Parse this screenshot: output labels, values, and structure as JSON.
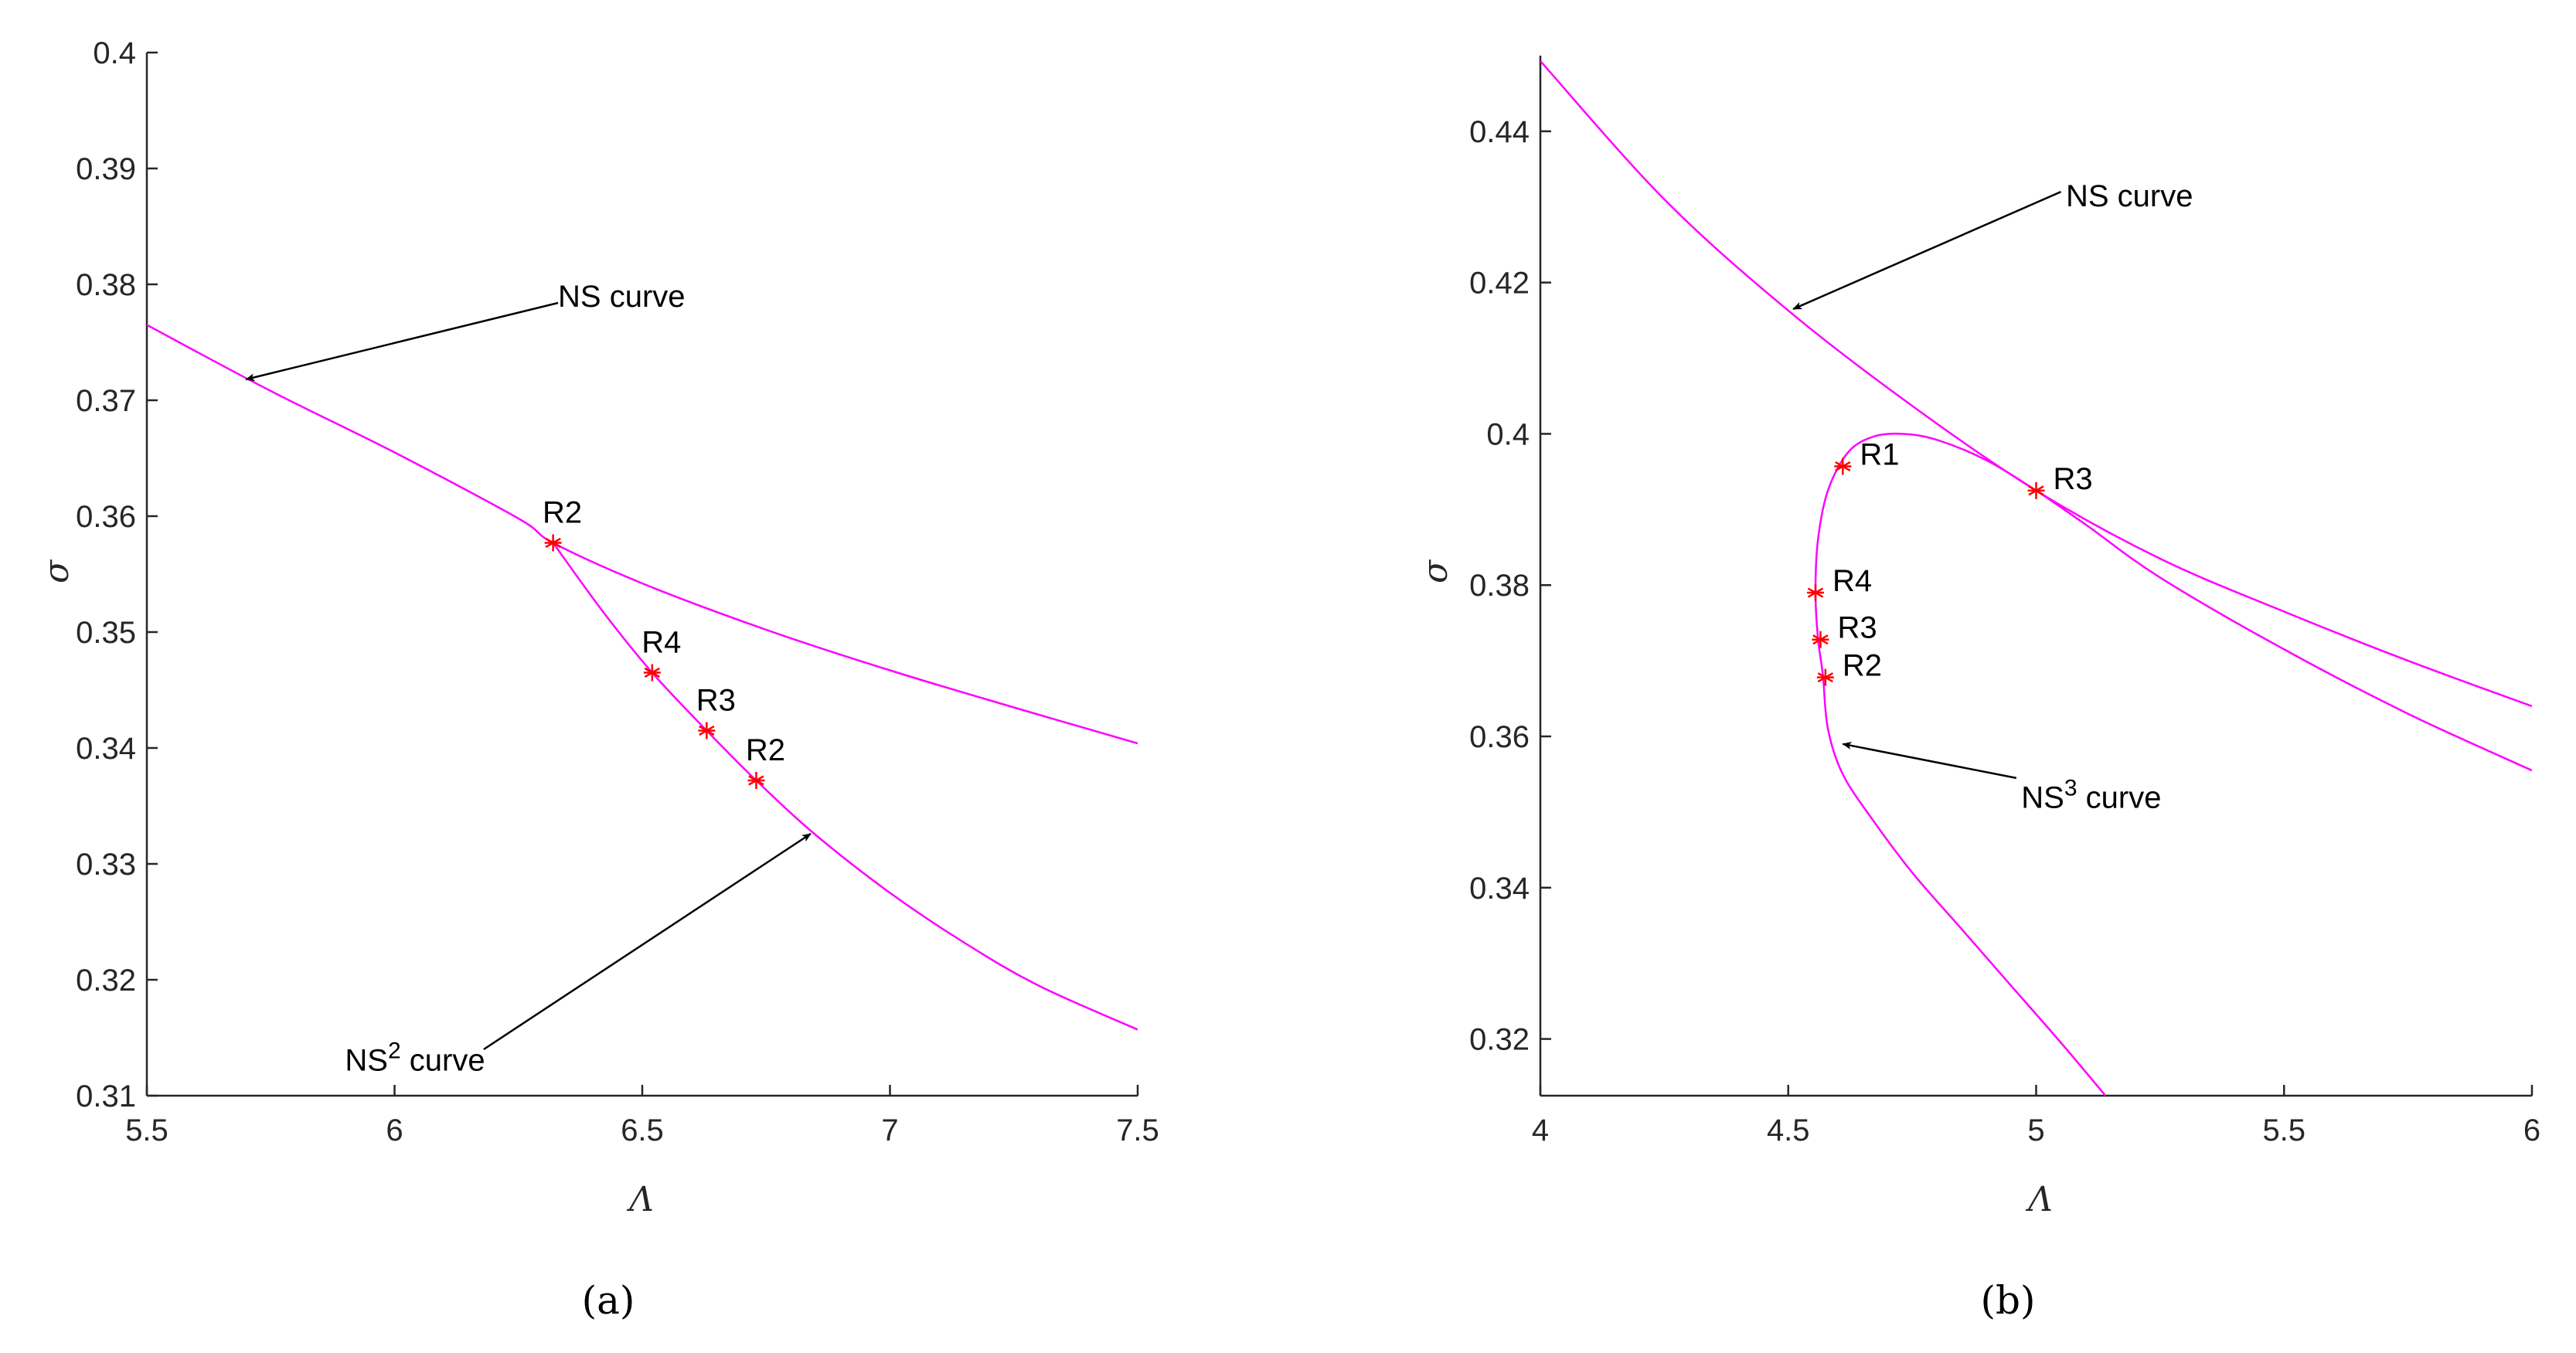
{
  "chart_data": [
    {
      "type": "line",
      "panel_label": "(a)",
      "xlabel": "Λ",
      "ylabel": "σ",
      "xlim": [
        5.5,
        7.5
      ],
      "ylim": [
        0.31,
        0.4
      ],
      "xticks": [
        5.5,
        6,
        6.5,
        7,
        7.5
      ],
      "xtick_labels": [
        "5.5",
        "6",
        "6.5",
        "7",
        "7.5"
      ],
      "yticks": [
        0.31,
        0.32,
        0.33,
        0.34,
        0.35,
        0.36,
        0.37,
        0.38,
        0.39,
        0.4
      ],
      "ytick_labels": [
        "0.31",
        "0.32",
        "0.33",
        "0.34",
        "0.35",
        "0.36",
        "0.37",
        "0.38",
        "0.39",
        "0.4"
      ],
      "grid": false,
      "line_color": "#ff00ff",
      "marker_color": "#ff0000",
      "series": [
        {
          "x": [
            5.5,
            5.75,
            6.0,
            6.25,
            6.32,
            6.5,
            6.75,
            7.0,
            7.25,
            7.5
          ],
          "y": [
            0.3765,
            0.3708,
            0.3655,
            0.3598,
            0.3577,
            0.3542,
            0.3502,
            0.3467,
            0.3435,
            0.3404
          ]
        },
        {
          "x": [
            6.32,
            6.42,
            6.52,
            6.63,
            6.73,
            6.85,
            7.0,
            7.15,
            7.3,
            7.5
          ],
          "y": [
            0.3577,
            0.3518,
            0.3465,
            0.3415,
            0.3372,
            0.3325,
            0.3275,
            0.3232,
            0.3195,
            0.3157
          ]
        }
      ],
      "points": [
        {
          "label": "R2",
          "x": 6.32,
          "y": 0.3577
        },
        {
          "label": "R4",
          "x": 6.52,
          "y": 0.3465
        },
        {
          "label": "R3",
          "x": 6.63,
          "y": 0.3415
        },
        {
          "label": "R2",
          "x": 6.73,
          "y": 0.3372
        }
      ],
      "annotations": [
        {
          "text": "NS curve",
          "sup": "",
          "text_after": "",
          "text_x": 6.33,
          "text_y": 0.379,
          "arrow_from_x": 6.33,
          "arrow_from_y": 0.3784,
          "arrow_to_x": 5.7,
          "arrow_to_y": 0.3718
        },
        {
          "text": "NS",
          "sup": "2",
          "text_after": " curve",
          "text_x": 5.9,
          "text_y": 0.3131,
          "arrow_from_x": 6.18,
          "arrow_from_y": 0.314,
          "arrow_to_x": 6.84,
          "arrow_to_y": 0.3326
        }
      ]
    },
    {
      "type": "line",
      "panel_label": "(b)",
      "xlabel": "Λ",
      "ylabel": "σ",
      "xlim": [
        4,
        6
      ],
      "ylim": [
        0.3125,
        0.45
      ],
      "xticks": [
        4,
        4.5,
        5,
        5.5,
        6
      ],
      "xtick_labels": [
        "4",
        "4.5",
        "5",
        "5.5",
        "6"
      ],
      "yticks": [
        0.32,
        0.34,
        0.36,
        0.38,
        0.4,
        0.42,
        0.44
      ],
      "ytick_labels": [
        "0.32",
        "0.34",
        "0.36",
        "0.38",
        "0.4",
        "0.42",
        "0.44"
      ],
      "grid": false,
      "line_color": "#ff00ff",
      "marker_color": "#ff0000",
      "series": [
        {
          "x": [
            4.0,
            4.25,
            4.5,
            4.75,
            5.0,
            5.25,
            5.5,
            5.75,
            6.0
          ],
          "y": [
            0.4493,
            0.431,
            0.4163,
            0.4037,
            0.3925,
            0.3835,
            0.3765,
            0.37,
            0.364
          ]
        },
        {
          "x": [
            5.14,
            5.05,
            4.95,
            4.85,
            4.75,
            4.67,
            4.61,
            4.58,
            4.57,
            4.56,
            4.555,
            4.56,
            4.58,
            4.62,
            4.67,
            4.73,
            4.8,
            4.9,
            5.0,
            5.1,
            5.25,
            5.5,
            5.75,
            6.0
          ],
          "y": [
            0.3125,
            0.3195,
            0.327,
            0.3345,
            0.342,
            0.349,
            0.355,
            0.361,
            0.368,
            0.373,
            0.379,
            0.386,
            0.3925,
            0.3975,
            0.3996,
            0.4,
            0.3992,
            0.3965,
            0.3925,
            0.388,
            0.381,
            0.3715,
            0.363,
            0.3555
          ]
        }
      ],
      "points": [
        {
          "label": "R1",
          "x": 4.61,
          "y": 0.3957
        },
        {
          "label": "R3",
          "x": 5.0,
          "y": 0.3925
        },
        {
          "label": "R4",
          "x": 4.555,
          "y": 0.379
        },
        {
          "label": "R3",
          "x": 4.565,
          "y": 0.3728
        },
        {
          "label": "R2",
          "x": 4.575,
          "y": 0.3678
        }
      ],
      "annotations": [
        {
          "text": "NS curve",
          "sup": "",
          "text_after": "",
          "text_x": 5.06,
          "text_y": 0.4315,
          "arrow_from_x": 5.05,
          "arrow_from_y": 0.432,
          "arrow_to_x": 4.51,
          "arrow_to_y": 0.4165
        },
        {
          "text": "NS",
          "sup": "3",
          "text_after": " curve",
          "text_x": 4.97,
          "text_y": 0.352,
          "arrow_from_x": 4.96,
          "arrow_from_y": 0.3545,
          "arrow_to_x": 4.61,
          "arrow_to_y": 0.359
        }
      ]
    }
  ]
}
